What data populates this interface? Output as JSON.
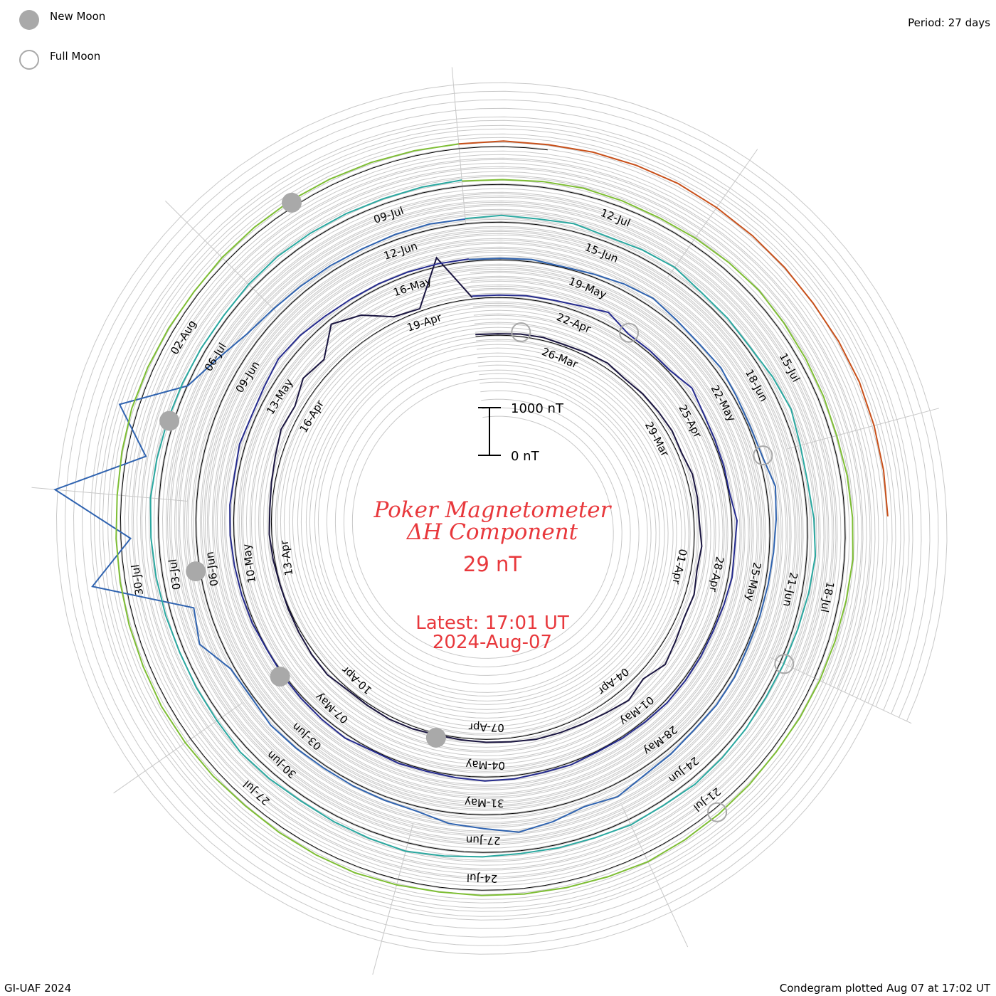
{
  "legend": {
    "new_moon_label": "New Moon",
    "full_moon_label": "Full Moon",
    "new_moon_color": "#a9a9a9",
    "full_moon_color": "#a9a9a9"
  },
  "period_text": "Period: 27 days",
  "credit_text": "GI-UAF 2024",
  "plotted_text": "Condegram plotted Aug 07 at 17:02 UT",
  "title_line1": "Poker Magnetometer",
  "title_line2": "ΔH Component",
  "current_value": "29 nT",
  "latest_time": "Latest: 17:01 UT",
  "latest_date": "2024-Aug-07",
  "scale_top_label": "1000 nT",
  "scale_bottom_label": "0 nT",
  "title_color": "#e8383c",
  "chart_data": {
    "type": "line",
    "subtype": "spiral condegram",
    "period_days": 27,
    "range_start": "2024-03-24",
    "range_end": "2024-08-07",
    "unit": "nT",
    "scale_bar_nT": 1000,
    "series": [
      {
        "color": "#1a1540",
        "values": [
          [
            0,
            160
          ],
          [
            0.5,
            150
          ],
          [
            1,
            170
          ],
          [
            1.5,
            180
          ],
          [
            2,
            160
          ],
          [
            2.5,
            190
          ],
          [
            3,
            220
          ],
          [
            3.5,
            170
          ],
          [
            4,
            200
          ],
          [
            4.5,
            210
          ],
          [
            5,
            230
          ],
          [
            5.5,
            200
          ],
          [
            6,
            260
          ],
          [
            6.5,
            250
          ],
          [
            7,
            230
          ],
          [
            7.5,
            280
          ],
          [
            8,
            240
          ],
          [
            8.5,
            300
          ],
          [
            9,
            270
          ],
          [
            9.5,
            330
          ],
          [
            10,
            420
          ],
          [
            10.5,
            260
          ],
          [
            11,
            380
          ],
          [
            11.5,
            310
          ],
          [
            12,
            270
          ],
          [
            12.5,
            250
          ],
          [
            13,
            240
          ],
          [
            13.5,
            200
          ],
          [
            14,
            180
          ],
          [
            14.5,
            160
          ],
          [
            15,
            150
          ],
          [
            15.5,
            170
          ],
          [
            16,
            180
          ],
          [
            16.5,
            160
          ],
          [
            17,
            150
          ],
          [
            17.5,
            210
          ],
          [
            18,
            190
          ],
          [
            18.5,
            160
          ],
          [
            19,
            140
          ],
          [
            19.5,
            130
          ],
          [
            20,
            150
          ],
          [
            20.5,
            170
          ],
          [
            21,
            160
          ],
          [
            21.5,
            190
          ],
          [
            22,
            240
          ],
          [
            22.5,
            320
          ],
          [
            23,
            280
          ],
          [
            23.5,
            460
          ],
          [
            24,
            380
          ],
          [
            24.5,
            820
          ],
          [
            25,
            600
          ],
          [
            25.5,
            230
          ],
          [
            26,
            170
          ],
          [
            26.5,
            1100
          ],
          [
            27,
            150
          ]
        ]
      },
      {
        "color": "#252b8e",
        "values": [
          [
            27,
            180
          ],
          [
            27.5,
            170
          ],
          [
            28,
            190
          ],
          [
            28.5,
            200
          ],
          [
            29,
            250
          ],
          [
            29.5,
            360
          ],
          [
            30,
            180
          ],
          [
            30.5,
            170
          ],
          [
            31,
            160
          ],
          [
            31.5,
            280
          ],
          [
            32,
            190
          ],
          [
            32.5,
            160
          ],
          [
            33,
            150
          ],
          [
            33.5,
            140
          ],
          [
            34,
            230
          ],
          [
            34.5,
            180
          ],
          [
            35,
            200
          ],
          [
            35.5,
            170
          ],
          [
            36,
            150
          ],
          [
            36.5,
            160
          ],
          [
            37,
            170
          ],
          [
            37.5,
            180
          ],
          [
            38,
            160
          ],
          [
            38.5,
            150
          ],
          [
            39,
            140
          ],
          [
            39.5,
            170
          ],
          [
            40,
            160
          ],
          [
            40.5,
            190
          ],
          [
            41,
            200
          ],
          [
            41.5,
            170
          ],
          [
            42,
            150
          ],
          [
            42.5,
            160
          ],
          [
            43,
            140
          ],
          [
            43.5,
            200
          ],
          [
            44,
            180
          ],
          [
            44.5,
            160
          ],
          [
            45,
            150
          ],
          [
            45.5,
            130
          ],
          [
            46,
            160
          ],
          [
            46.5,
            170
          ],
          [
            47,
            180
          ],
          [
            47.5,
            200
          ],
          [
            48,
            210
          ],
          [
            48.5,
            190
          ],
          [
            49,
            240
          ],
          [
            49.5,
            210
          ],
          [
            50,
            250
          ],
          [
            50.5,
            330
          ],
          [
            51,
            300
          ],
          [
            51.5,
            240
          ],
          [
            52,
            210
          ],
          [
            52.5,
            200
          ],
          [
            53,
            190
          ],
          [
            53.5,
            180
          ],
          [
            54,
            170
          ]
        ]
      },
      {
        "color": "#2f63b0",
        "values": [
          [
            54,
            160
          ],
          [
            54.5,
            150
          ],
          [
            55,
            170
          ],
          [
            55.5,
            140
          ],
          [
            56,
            180
          ],
          [
            56.5,
            250
          ],
          [
            57,
            300
          ],
          [
            57.5,
            230
          ],
          [
            58,
            200
          ],
          [
            58.5,
            230
          ],
          [
            59,
            180
          ],
          [
            59.5,
            160
          ],
          [
            60,
            190
          ],
          [
            60.5,
            320
          ],
          [
            61,
            260
          ],
          [
            61.5,
            210
          ],
          [
            62,
            180
          ],
          [
            62.5,
            170
          ],
          [
            63,
            160
          ],
          [
            63.5,
            200
          ],
          [
            64,
            210
          ],
          [
            64.5,
            190
          ],
          [
            65,
            230
          ],
          [
            65.5,
            260
          ],
          [
            66,
            380
          ],
          [
            66.5,
            300
          ],
          [
            67,
            420
          ],
          [
            67.5,
            520
          ],
          [
            68,
            410
          ],
          [
            68.5,
            350
          ],
          [
            69,
            220
          ],
          [
            69.5,
            200
          ],
          [
            70,
            190
          ],
          [
            70.5,
            180
          ],
          [
            71,
            200
          ],
          [
            71.5,
            220
          ],
          [
            72,
            160
          ],
          [
            72.5,
            200
          ],
          [
            73,
            560
          ],
          [
            73.5,
            420
          ],
          [
            74,
            2400
          ],
          [
            74.5,
            1500
          ],
          [
            75,
            3100
          ],
          [
            75.5,
            1300
          ],
          [
            76,
            2100
          ],
          [
            76.5,
            900
          ],
          [
            77,
            600
          ],
          [
            77.5,
            380
          ],
          [
            78,
            300
          ],
          [
            78.5,
            260
          ],
          [
            79,
            240
          ],
          [
            79.5,
            220
          ],
          [
            80,
            230
          ],
          [
            80.5,
            240
          ],
          [
            81,
            220
          ]
        ]
      },
      {
        "color": "#2aa8a0",
        "values": [
          [
            81,
            230
          ],
          [
            81.5,
            260
          ],
          [
            82,
            240
          ],
          [
            82.5,
            280
          ],
          [
            83,
            230
          ],
          [
            83.5,
            270
          ],
          [
            84,
            300
          ],
          [
            84.5,
            220
          ],
          [
            85,
            210
          ],
          [
            85.5,
            190
          ],
          [
            86,
            250
          ],
          [
            86.5,
            300
          ],
          [
            87,
            230
          ],
          [
            87.5,
            210
          ],
          [
            88,
            260
          ],
          [
            88.5,
            300
          ],
          [
            89,
            260
          ],
          [
            89.5,
            220
          ],
          [
            90,
            200
          ],
          [
            90.5,
            190
          ],
          [
            91,
            210
          ],
          [
            91.5,
            230
          ],
          [
            92,
            250
          ],
          [
            92.5,
            220
          ],
          [
            93,
            240
          ],
          [
            93.5,
            200
          ],
          [
            94,
            190
          ],
          [
            94.5,
            180
          ],
          [
            95,
            210
          ],
          [
            95.5,
            250
          ],
          [
            96,
            300
          ],
          [
            96.5,
            270
          ],
          [
            97,
            250
          ],
          [
            97.5,
            230
          ],
          [
            98,
            260
          ],
          [
            98.5,
            280
          ],
          [
            99,
            240
          ],
          [
            99.5,
            230
          ],
          [
            100,
            220
          ],
          [
            100.5,
            240
          ],
          [
            101,
            260
          ],
          [
            101.5,
            280
          ],
          [
            102,
            300
          ],
          [
            102.5,
            270
          ],
          [
            103,
            250
          ],
          [
            103.5,
            230
          ],
          [
            104,
            220
          ],
          [
            104.5,
            210
          ],
          [
            105,
            240
          ],
          [
            105.5,
            260
          ],
          [
            106,
            250
          ],
          [
            106.5,
            240
          ],
          [
            107,
            230
          ],
          [
            107.5,
            240
          ],
          [
            108,
            250
          ]
        ]
      },
      {
        "color": "#7ebe34",
        "values": [
          [
            108,
            230
          ],
          [
            108.5,
            220
          ],
          [
            109,
            240
          ],
          [
            109.5,
            260
          ],
          [
            110,
            250
          ],
          [
            110.5,
            240
          ],
          [
            111,
            260
          ],
          [
            111.5,
            280
          ],
          [
            112,
            300
          ],
          [
            112.5,
            270
          ],
          [
            113,
            250
          ],
          [
            113.5,
            240
          ],
          [
            114,
            230
          ],
          [
            114.5,
            260
          ],
          [
            115,
            280
          ],
          [
            115.5,
            300
          ],
          [
            116,
            270
          ],
          [
            116.5,
            250
          ],
          [
            117,
            240
          ],
          [
            117.5,
            230
          ],
          [
            118,
            220
          ],
          [
            118.5,
            240
          ],
          [
            119,
            260
          ],
          [
            119.5,
            280
          ],
          [
            120,
            300
          ],
          [
            120.5,
            270
          ],
          [
            121,
            250
          ],
          [
            121.5,
            240
          ],
          [
            122,
            230
          ],
          [
            122.5,
            220
          ],
          [
            123,
            240
          ],
          [
            123.5,
            260
          ],
          [
            124,
            250
          ],
          [
            124.5,
            240
          ],
          [
            125,
            230
          ],
          [
            125.5,
            250
          ],
          [
            126,
            260
          ],
          [
            126.5,
            270
          ],
          [
            127,
            250
          ],
          [
            127.5,
            240
          ],
          [
            128,
            230
          ],
          [
            128.5,
            220
          ],
          [
            129,
            210
          ],
          [
            129.5,
            230
          ],
          [
            130,
            250
          ],
          [
            130.5,
            240
          ],
          [
            131,
            230
          ],
          [
            131.5,
            220
          ],
          [
            132,
            240
          ],
          [
            132.5,
            250
          ],
          [
            133,
            260
          ],
          [
            133.5,
            250
          ],
          [
            134,
            240
          ],
          [
            134.5,
            230
          ],
          [
            135,
            220
          ]
        ]
      },
      {
        "color": "#c8501a",
        "values": [
          [
            135,
            220
          ],
          [
            135.5,
            240
          ],
          [
            136,
            230
          ],
          [
            136.5,
            250
          ],
          [
            137,
            260
          ],
          [
            137.5,
            270
          ],
          [
            138,
            250
          ],
          [
            138.5,
            240
          ],
          [
            139,
            230
          ],
          [
            139.5,
            220
          ],
          [
            140,
            240
          ],
          [
            140.5,
            260
          ],
          [
            141,
            250
          ],
          [
            141.5,
            240
          ],
          [
            142,
            230
          ]
        ]
      }
    ],
    "date_labels": [
      "26-Mar",
      "29-Mar",
      "01-Apr",
      "04-Apr",
      "07-Apr",
      "10-Apr",
      "13-Apr",
      "16-Apr",
      "19-Apr",
      "22-Apr",
      "25-Apr",
      "28-Apr",
      "01-May",
      "04-May",
      "07-May",
      "10-May",
      "13-May",
      "16-May",
      "19-May",
      "22-May",
      "25-May",
      "28-May",
      "31-May",
      "03-Jun",
      "06-Jun",
      "09-Jun",
      "12-Jun",
      "15-Jun",
      "18-Jun",
      "21-Jun",
      "24-Jun",
      "27-Jun",
      "30-Jun",
      "03-Jul",
      "06-Jul",
      "09-Jul",
      "12-Jul",
      "15-Jul",
      "18-Jul",
      "21-Jul",
      "24-Jul",
      "27-Jul",
      "30-Jul",
      "02-Aug"
    ],
    "moon_phases": [
      {
        "phase": "full",
        "date": "2024-03-25"
      },
      {
        "phase": "new",
        "date": "2024-04-08"
      },
      {
        "phase": "full",
        "date": "2024-04-23"
      },
      {
        "phase": "new",
        "date": "2024-05-08"
      },
      {
        "phase": "full",
        "date": "2024-05-23"
      },
      {
        "phase": "new",
        "date": "2024-06-06"
      },
      {
        "phase": "full",
        "date": "2024-06-22"
      },
      {
        "phase": "new",
        "date": "2024-07-05"
      },
      {
        "phase": "full",
        "date": "2024-07-21"
      },
      {
        "phase": "new",
        "date": "2024-08-04"
      }
    ]
  }
}
